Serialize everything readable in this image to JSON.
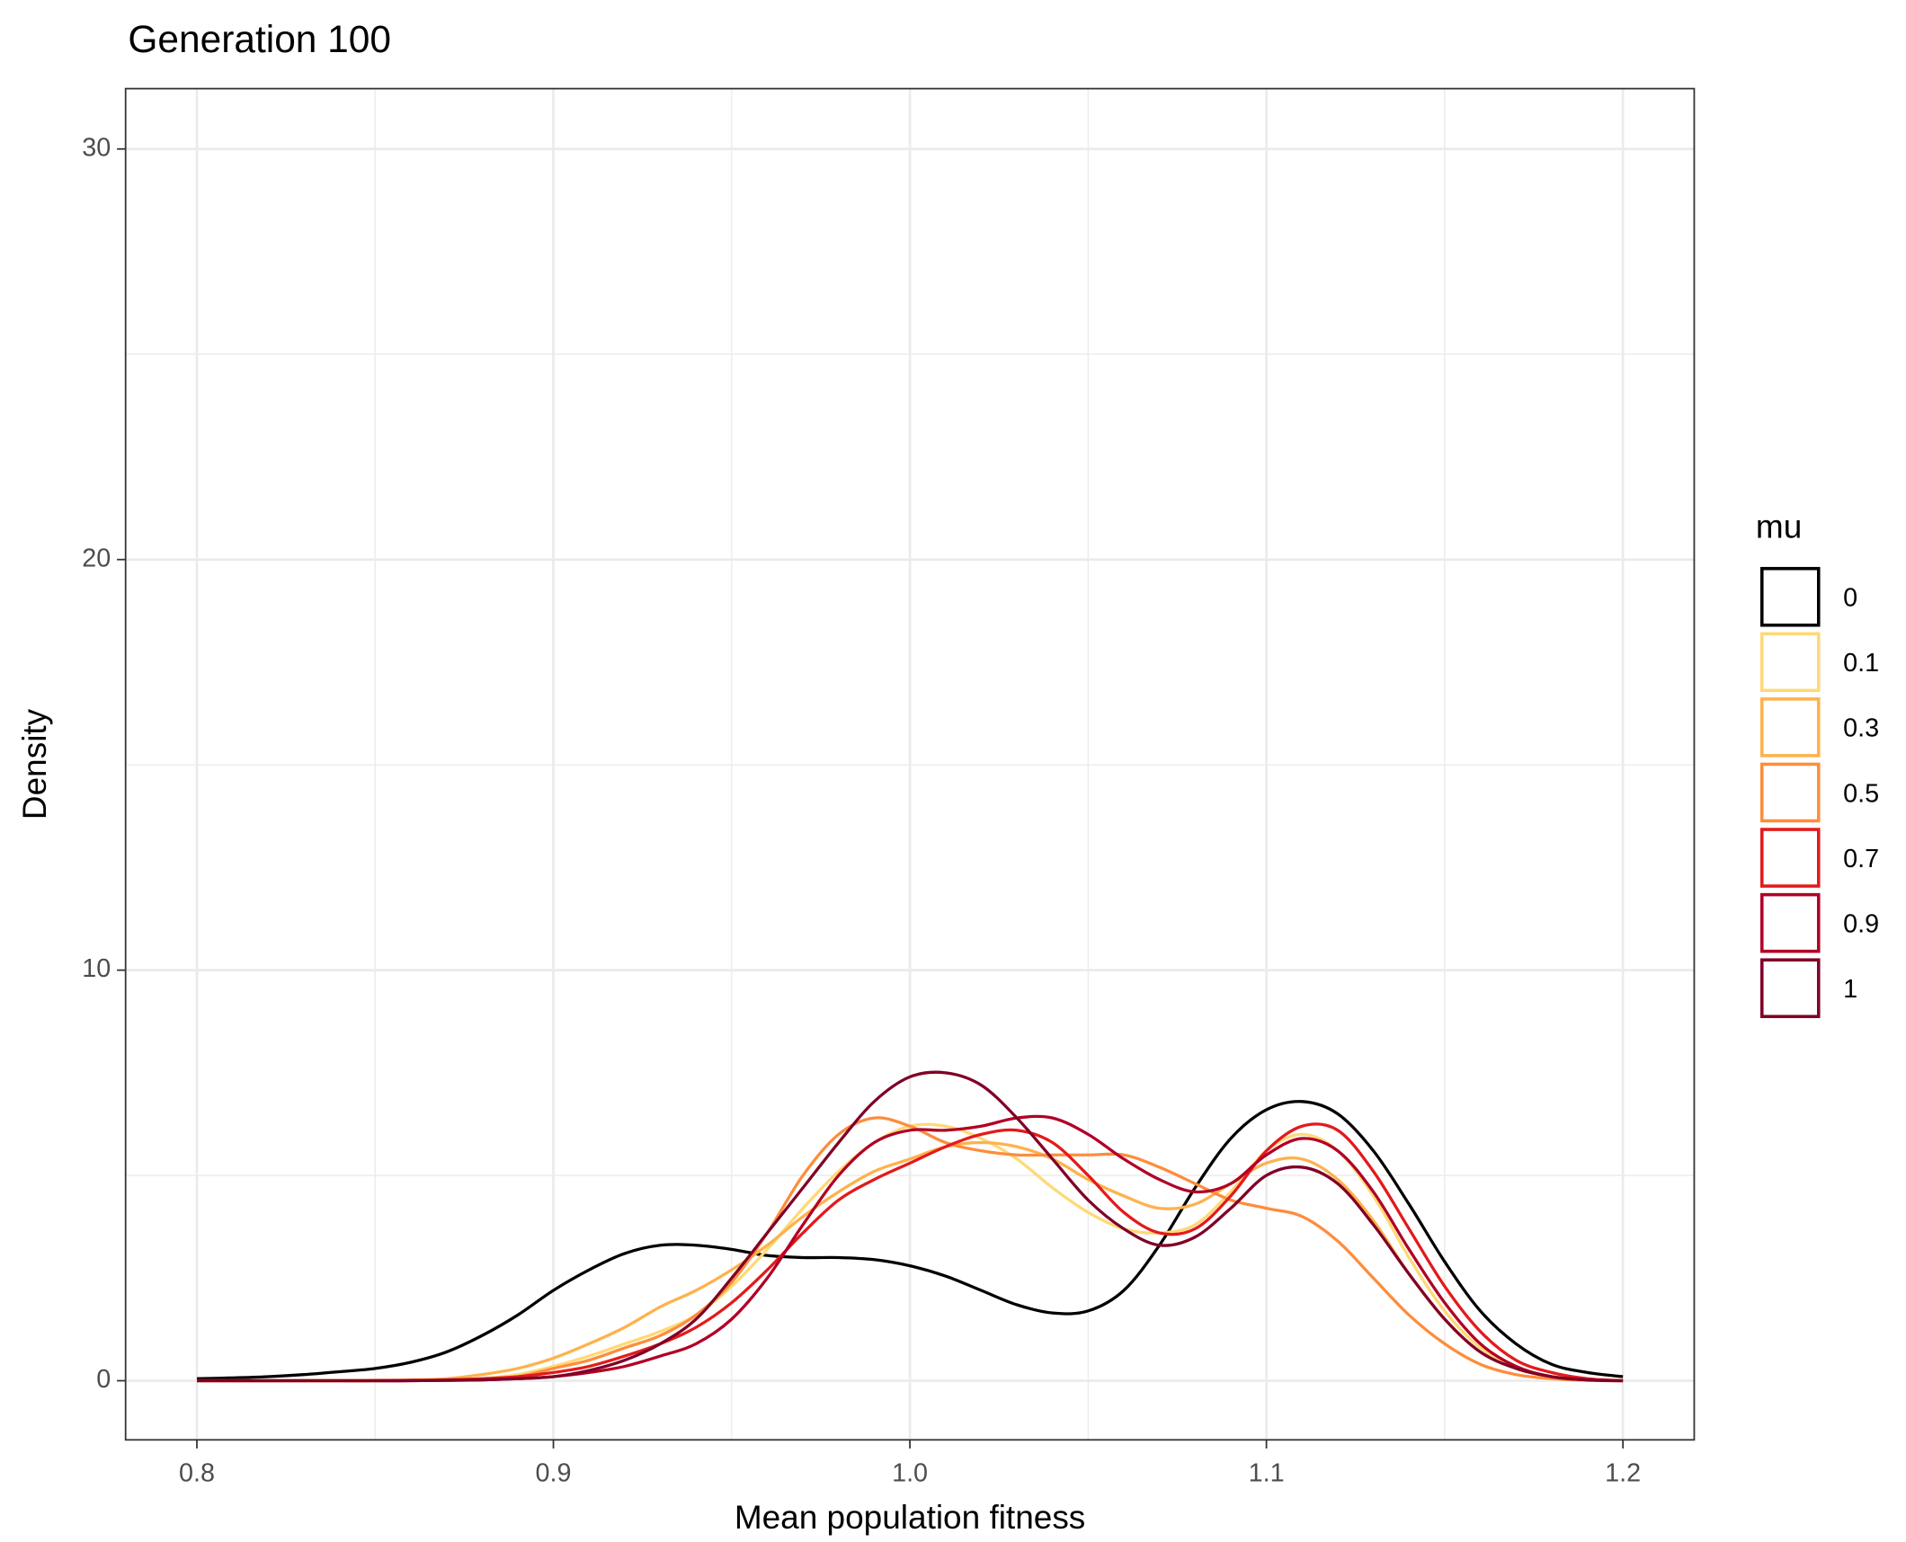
{
  "chart_data": {
    "type": "line",
    "title": "Generation 100",
    "x_label": "Mean population fitness",
    "y_label": "Density",
    "legend_title": "mu",
    "legend_position": "right",
    "grid": true,
    "xlim": [
      0.78,
      1.22
    ],
    "ylim": [
      -1.44,
      31.47
    ],
    "xticks": [
      0.8,
      0.9,
      {
        "value": 1,
        "label": "1.0"
      },
      1.1,
      1.2
    ],
    "yticks": [
      0,
      10,
      20,
      30
    ],
    "x_minor_ticks": [
      0.85,
      0.95,
      1.05,
      1.15
    ],
    "y_minor_ticks": [
      5,
      15,
      25
    ],
    "x": [
      0.8,
      0.81,
      0.82,
      0.83,
      0.84,
      0.85,
      0.86,
      0.87,
      0.88,
      0.89,
      0.9,
      0.91,
      0.92,
      0.93,
      0.94,
      0.95,
      0.96,
      0.97,
      0.98,
      0.99,
      1.0,
      1.01,
      1.02,
      1.03,
      1.04,
      1.05,
      1.06,
      1.07,
      1.08,
      1.09,
      1.1,
      1.11,
      1.12,
      1.13,
      1.14,
      1.15,
      1.16,
      1.17,
      1.18,
      1.19,
      1.2
    ],
    "series": [
      {
        "name": "0",
        "color": "#000000",
        "values": [
          0.05,
          0.07,
          0.1,
          0.15,
          0.22,
          0.3,
          0.45,
          0.7,
          1.1,
          1.6,
          2.2,
          2.7,
          3.1,
          3.3,
          3.3,
          3.2,
          3.05,
          3.0,
          3.0,
          2.95,
          2.8,
          2.55,
          2.2,
          1.85,
          1.65,
          1.7,
          2.2,
          3.3,
          4.7,
          5.9,
          6.6,
          6.8,
          6.5,
          5.6,
          4.3,
          2.9,
          1.7,
          0.9,
          0.4,
          0.2,
          0.1
        ]
      },
      {
        "name": "0.1",
        "color": "#fed976",
        "values": [
          0,
          0,
          0,
          0,
          0,
          0.01,
          0.01,
          0.02,
          0.05,
          0.15,
          0.35,
          0.6,
          0.9,
          1.2,
          1.6,
          2.3,
          3.2,
          4.2,
          5.1,
          5.8,
          6.2,
          6.2,
          5.9,
          5.4,
          4.7,
          4.1,
          3.7,
          3.6,
          3.8,
          4.6,
          5.6,
          6.0,
          5.6,
          4.5,
          3.0,
          1.7,
          0.8,
          0.3,
          0.1,
          0.03,
          0
        ]
      },
      {
        "name": "0.3",
        "color": "#feb24c",
        "values": [
          0,
          0,
          0,
          0,
          0,
          0.01,
          0.02,
          0.05,
          0.15,
          0.3,
          0.55,
          0.9,
          1.3,
          1.8,
          2.2,
          2.7,
          3.3,
          4.0,
          4.6,
          5.1,
          5.4,
          5.7,
          5.8,
          5.7,
          5.4,
          4.9,
          4.5,
          4.2,
          4.3,
          4.8,
          5.3,
          5.4,
          4.9,
          3.9,
          2.6,
          1.5,
          0.7,
          0.3,
          0.1,
          0.03,
          0
        ]
      },
      {
        "name": "0.5",
        "color": "#fd8d3c",
        "values": [
          0,
          0,
          0,
          0,
          0,
          0,
          0.01,
          0.02,
          0.05,
          0.1,
          0.3,
          0.5,
          0.8,
          1.1,
          1.6,
          2.4,
          3.6,
          5.0,
          6.0,
          6.4,
          6.2,
          5.8,
          5.6,
          5.5,
          5.5,
          5.5,
          5.5,
          5.2,
          4.8,
          4.4,
          4.2,
          4.0,
          3.4,
          2.5,
          1.6,
          0.9,
          0.4,
          0.15,
          0.05,
          0.01,
          0
        ]
      },
      {
        "name": "0.7",
        "color": "#e31a1c",
        "values": [
          0,
          0,
          0,
          0,
          0,
          0,
          0.01,
          0.02,
          0.05,
          0.1,
          0.2,
          0.35,
          0.6,
          0.9,
          1.3,
          1.9,
          2.7,
          3.6,
          4.4,
          4.9,
          5.3,
          5.7,
          6.0,
          6.1,
          5.8,
          5.0,
          4.1,
          3.6,
          3.7,
          4.5,
          5.6,
          6.2,
          6.1,
          5.1,
          3.7,
          2.3,
          1.2,
          0.5,
          0.2,
          0.05,
          0
        ]
      },
      {
        "name": "0.9",
        "color": "#b10026",
        "values": [
          0,
          0,
          0,
          0,
          0,
          0,
          0,
          0.01,
          0.02,
          0.05,
          0.1,
          0.2,
          0.35,
          0.6,
          0.9,
          1.5,
          2.5,
          3.8,
          5.0,
          5.8,
          6.1,
          6.1,
          6.2,
          6.4,
          6.4,
          6.0,
          5.4,
          4.9,
          4.6,
          4.8,
          5.5,
          5.9,
          5.6,
          4.6,
          3.2,
          1.9,
          0.9,
          0.35,
          0.1,
          0.02,
          0
        ]
      },
      {
        "name": "1",
        "color": "#800026",
        "values": [
          0,
          0,
          0,
          0,
          0,
          0,
          0,
          0.01,
          0.02,
          0.05,
          0.1,
          0.25,
          0.5,
          0.9,
          1.5,
          2.5,
          3.6,
          4.7,
          5.8,
          6.8,
          7.4,
          7.5,
          7.2,
          6.4,
          5.4,
          4.4,
          3.7,
          3.3,
          3.5,
          4.2,
          5.0,
          5.2,
          4.8,
          3.8,
          2.6,
          1.5,
          0.7,
          0.3,
          0.1,
          0.02,
          0
        ]
      }
    ]
  }
}
